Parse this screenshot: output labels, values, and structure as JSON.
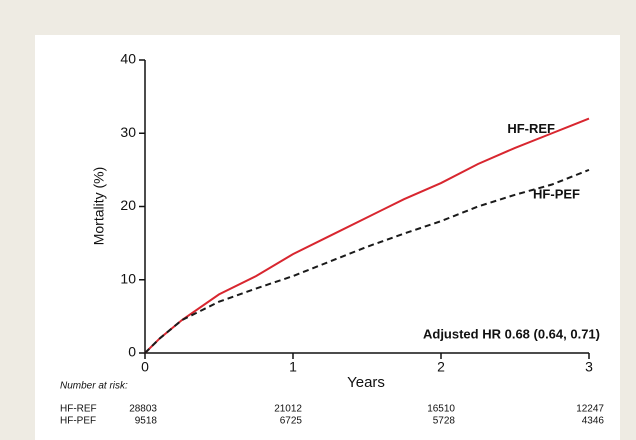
{
  "chart_data": {
    "type": "line",
    "x": [
      0,
      0.1,
      0.25,
      0.5,
      0.75,
      1,
      1.25,
      1.5,
      1.75,
      2,
      2.25,
      2.5,
      2.75,
      3
    ],
    "series": [
      {
        "name": "HF-REF",
        "color": "#d8262f",
        "dashed": false,
        "values": [
          0,
          2,
          4.5,
          8,
          10.5,
          13.5,
          16,
          18.5,
          21,
          23.2,
          25.8,
          28,
          30,
          32
        ]
      },
      {
        "name": "HF-PEF",
        "color": "#1a1a1a",
        "dashed": true,
        "values": [
          0,
          2,
          4.5,
          7,
          8.8,
          10.5,
          12.5,
          14.5,
          16.3,
          18,
          20,
          21.6,
          23,
          25
        ]
      }
    ],
    "xlabel": "Years",
    "ylabel": "Mortality (%)",
    "xlim": [
      0,
      3
    ],
    "ylim": [
      0,
      40
    ],
    "xticks": [
      0,
      1,
      2,
      3
    ],
    "yticks": [
      0,
      10,
      20,
      30,
      40
    ],
    "annotation": "Adjusted HR 0.68 (0.64, 0.71)"
  },
  "risk_table": {
    "title": "Number at risk:",
    "rows": [
      {
        "name": "HF-REF",
        "values": [
          28803,
          21012,
          16510,
          12247
        ]
      },
      {
        "name": "HF-PEF",
        "values": [
          9518,
          6725,
          5728,
          4346
        ]
      }
    ]
  }
}
